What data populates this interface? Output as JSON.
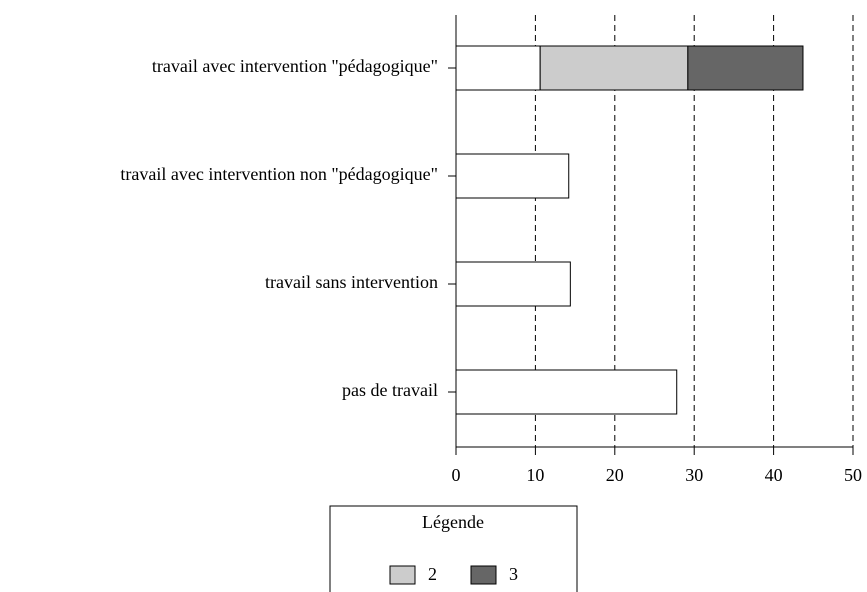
{
  "chart_data": {
    "type": "bar",
    "orientation": "horizontal",
    "stacked": true,
    "categories": [
      "travail avec intervention \"pédagogique\"",
      "travail avec intervention non \"pédagogique\"",
      "travail sans intervention",
      "pas de travail"
    ],
    "series": [
      {
        "color": "#ffffff",
        "values": [
          10.6,
          14.2,
          14.4,
          27.8
        ]
      },
      {
        "name": "2",
        "color": "#cccccc",
        "values": [
          18.6,
          null,
          null,
          null
        ]
      },
      {
        "name": "3",
        "color": "#666666",
        "values": [
          14.5,
          null,
          null,
          null
        ]
      }
    ],
    "xlim": [
      0,
      50
    ],
    "xticks": [
      0,
      10,
      20,
      30,
      40,
      50
    ],
    "grid": true,
    "legend_title": "Légende",
    "legend_position": "bottom"
  }
}
